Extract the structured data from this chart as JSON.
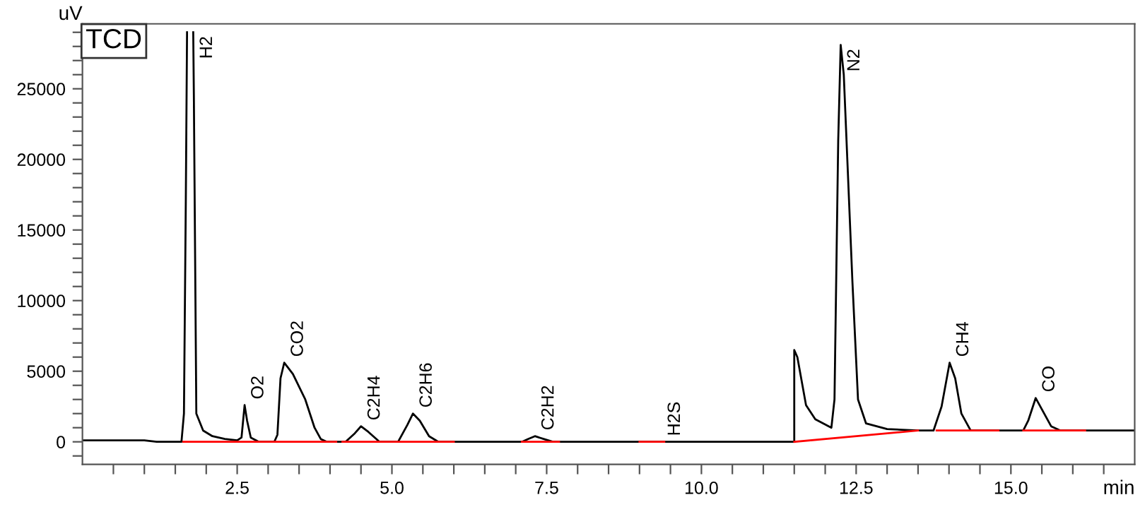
{
  "chart_data": {
    "type": "line",
    "xlabel": "min",
    "ylabel": "uV",
    "xlim": [
      0,
      17
    ],
    "ylim": [
      -1600,
      29600
    ],
    "xticks": [
      {
        "value": 0.5,
        "label": null
      },
      {
        "value": 1,
        "label": null
      },
      {
        "value": 1.5,
        "label": null
      },
      {
        "value": 2,
        "label": null
      },
      2.5,
      {
        "value": 3,
        "label": null
      },
      {
        "value": 3.5,
        "label": null
      },
      {
        "value": 4,
        "label": null
      },
      {
        "value": 4.5,
        "label": null
      },
      {
        "value": 5,
        "label": "5.0"
      },
      {
        "value": 5.5,
        "label": null
      },
      {
        "value": 6,
        "label": null
      },
      {
        "value": 6.5,
        "label": null
      },
      {
        "value": 7,
        "label": null
      },
      7.5,
      {
        "value": 8,
        "label": null
      },
      {
        "value": 8.5,
        "label": null
      },
      {
        "value": 9,
        "label": null
      },
      {
        "value": 9.5,
        "label": null
      },
      {
        "value": 10,
        "label": "10.0"
      },
      {
        "value": 10.5,
        "label": null
      },
      {
        "value": 11,
        "label": null
      },
      {
        "value": 11.5,
        "label": null
      },
      {
        "value": 12,
        "label": null
      },
      12.5,
      {
        "value": 13,
        "label": null
      },
      {
        "value": 13.5,
        "label": null
      },
      {
        "value": 14,
        "label": null
      },
      {
        "value": 14.5,
        "label": null
      },
      {
        "value": 15,
        "label": "15.0"
      },
      {
        "value": 15.5,
        "label": null
      },
      {
        "value": 16,
        "label": null
      },
      {
        "value": 16.5,
        "label": null
      }
    ],
    "yticks": [
      {
        "value": -1000,
        "label": null
      },
      0,
      {
        "value": 1000,
        "label": null
      },
      {
        "value": 2000,
        "label": null
      },
      {
        "value": 3000,
        "label": null
      },
      {
        "value": 4000,
        "label": null
      },
      5000,
      {
        "value": 6000,
        "label": null
      },
      {
        "value": 7000,
        "label": null
      },
      {
        "value": 8000,
        "label": null
      },
      {
        "value": 9000,
        "label": null
      },
      10000,
      {
        "value": 11000,
        "label": null
      },
      {
        "value": 12000,
        "label": null
      },
      {
        "value": 13000,
        "label": null
      },
      {
        "value": 14000,
        "label": null
      },
      15000,
      {
        "value": 16000,
        "label": null
      },
      {
        "value": 17000,
        "label": null
      },
      {
        "value": 18000,
        "label": null
      },
      {
        "value": 19000,
        "label": null
      },
      20000,
      {
        "value": 21000,
        "label": null
      },
      {
        "value": 22000,
        "label": null
      },
      {
        "value": 23000,
        "label": null
      },
      {
        "value": 24000,
        "label": null
      },
      25000,
      {
        "value": 26000,
        "label": null
      },
      {
        "value": 27000,
        "label": null
      },
      {
        "value": 28000,
        "label": null
      },
      {
        "value": 29000,
        "label": null
      }
    ],
    "grid": false,
    "marker": "none",
    "line_style": "solid",
    "series": [
      {
        "color": "#000000",
        "x": [
          0,
          1.0,
          1.2,
          1.6,
          1.64,
          1.67,
          1.69,
          1.7,
          1.78,
          1.79,
          1.8,
          1.84,
          1.95,
          2.1,
          2.3,
          2.5,
          2.57,
          2.62,
          2.66,
          2.72,
          2.85,
          3.1,
          3.15,
          3.2,
          3.26,
          3.4,
          3.6,
          3.75,
          3.85,
          3.95,
          4.25,
          4.4,
          4.5,
          4.62,
          4.8,
          5.1,
          5.25,
          5.34,
          5.45,
          5.6,
          5.75,
          7.1,
          7.2,
          7.31,
          7.45,
          7.6,
          11.5,
          11.5,
          11.55,
          11.69,
          11.84,
          12.1,
          12.15,
          12.21,
          12.25,
          12.3,
          12.44,
          12.53,
          12.66,
          13.0,
          13.5,
          13.75,
          13.88,
          14.01,
          14.1,
          14.2,
          14.35,
          15.2,
          15.28,
          15.4,
          15.5,
          15.65,
          15.8,
          17
        ],
        "values": [
          100,
          100,
          0,
          0,
          2000,
          17000,
          29000,
          null,
          null,
          29000,
          24600,
          2000,
          800,
          400,
          200,
          100,
          300,
          2600,
          1500,
          300,
          0,
          0,
          500,
          4500,
          5600,
          4800,
          3000,
          1000,
          200,
          0,
          0,
          600,
          1100,
          700,
          0,
          0,
          1200,
          2000,
          1500,
          400,
          0,
          0,
          200,
          400,
          200,
          0,
          0,
          6500,
          6000,
          2600,
          1600,
          1000,
          3000,
          21300,
          28100,
          26000,
          11300,
          3000,
          1300,
          900,
          800,
          800,
          2500,
          5600,
          4500,
          2000,
          800,
          800,
          1500,
          3100,
          2300,
          1100,
          800,
          800
        ]
      },
      {
        "color": "#ff0000",
        "x": [
          1.63,
          4.1,
          4.15,
          4.2,
          6.0,
          6.5,
          7.1,
          7.7,
          8.5,
          9.0,
          9.4,
          10.5,
          11.5,
          13.5,
          13.6,
          13.8,
          14.8,
          15.0,
          15.2,
          16.2
        ],
        "values": [
          0,
          0,
          null,
          0,
          0,
          null,
          0,
          0,
          null,
          0,
          0,
          null,
          0,
          800,
          null,
          800,
          800,
          null,
          800,
          800
        ]
      }
    ],
    "annotations": [
      "TCD",
      {
        "text": "H2",
        "x": 1.79,
        "y": 29000
      },
      {
        "text": "O2",
        "x": 2.62,
        "y": 2600
      },
      {
        "text": "CO2",
        "x": 3.26,
        "y": 5600
      },
      {
        "text": "C2H4",
        "x": 4.5,
        "y": 1100
      },
      {
        "text": "C2H6",
        "x": 5.34,
        "y": 2000
      },
      {
        "text": "C2H2",
        "x": 7.31,
        "y": 400
      },
      {
        "text": "H2S",
        "x": 9.35,
        "y": 0
      },
      {
        "text": "N2",
        "x": 12.25,
        "y": 28100
      },
      {
        "text": "CH4",
        "x": 14.01,
        "y": 5600
      },
      {
        "text": "CO",
        "x": 15.4,
        "y": 3100
      }
    ]
  }
}
